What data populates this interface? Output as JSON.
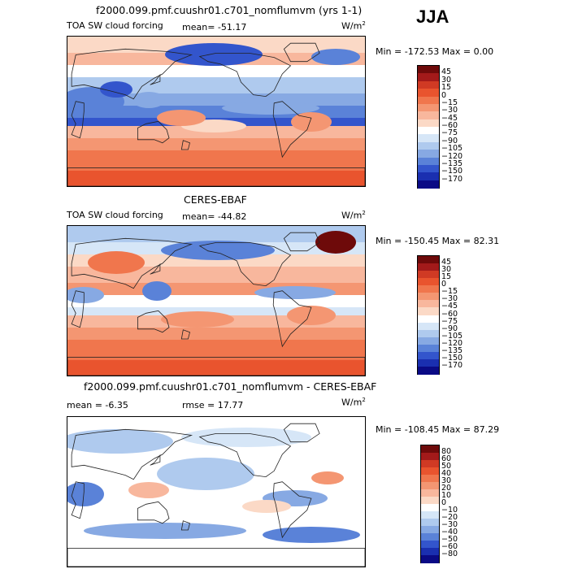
{
  "season": "JJA",
  "panels": [
    {
      "title": "f2000.099.pmf.cuushr01.c701_nomflumvm (yrs 1-1)",
      "left_label": "TOA SW cloud forcing",
      "mean_label": "mean= -51.17",
      "rmse_label": "",
      "units": "W/m",
      "units_sup": "2",
      "minmax": "Min = -172.53  Max =    0.00",
      "map_type": "model",
      "levels": [
        "45",
        "30",
        "15",
        "0",
        "−15",
        "−30",
        "−45",
        "−60",
        "−75",
        "−90",
        "−105",
        "−120",
        "−135",
        "−150",
        "−170"
      ],
      "colors": [
        "#6e0a0a",
        "#a31a1a",
        "#d03a24",
        "#e9542e",
        "#f0764d",
        "#f49672",
        "#f8b79d",
        "#fbd9c6",
        "#ffffff",
        "#d6e6f7",
        "#afcaee",
        "#87a9e3",
        "#5a82d8",
        "#3355cc",
        "#1a2fb0",
        "#0a0a85"
      ]
    },
    {
      "title": "CERES-EBAF",
      "left_label": "TOA SW cloud forcing",
      "mean_label": "mean= -44.82",
      "rmse_label": "",
      "units": "W/m",
      "units_sup": "2",
      "minmax": "Min = -150.45  Max =  82.31",
      "map_type": "obs",
      "levels": [
        "45",
        "30",
        "15",
        "0",
        "−15",
        "−30",
        "−45",
        "−60",
        "−75",
        "−90",
        "−105",
        "−120",
        "−135",
        "−150",
        "−170"
      ],
      "colors": [
        "#6e0a0a",
        "#a31a1a",
        "#d03a24",
        "#e9542e",
        "#f0764d",
        "#f49672",
        "#f8b79d",
        "#fbd9c6",
        "#ffffff",
        "#d6e6f7",
        "#afcaee",
        "#87a9e3",
        "#5a82d8",
        "#3355cc",
        "#1a2fb0",
        "#0a0a85"
      ]
    },
    {
      "title": "f2000.099.pmf.cuushr01.c701_nomflumvm - CERES-EBAF",
      "left_label": "mean =  -6.35",
      "mean_label": "",
      "rmse_label": "rmse =  17.77",
      "units": "W/m",
      "units_sup": "2",
      "minmax": "Min = -108.45  Max =  87.29",
      "map_type": "diff",
      "levels": [
        "80",
        "60",
        "50",
        "40",
        "30",
        "20",
        "10",
        "0",
        "−10",
        "−20",
        "−30",
        "−40",
        "−50",
        "−60",
        "−80"
      ],
      "colors": [
        "#6e0a0a",
        "#a31a1a",
        "#d03a24",
        "#e9542e",
        "#f0764d",
        "#f49672",
        "#f8b79d",
        "#fbd9c6",
        "#ffffff",
        "#d6e6f7",
        "#afcaee",
        "#87a9e3",
        "#5a82d8",
        "#3355cc",
        "#1a2fb0",
        "#0a0a85"
      ]
    }
  ]
}
